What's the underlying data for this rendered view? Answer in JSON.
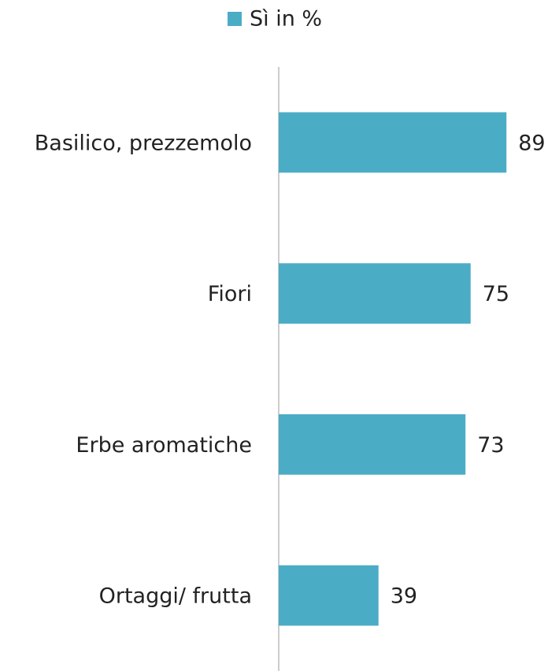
{
  "chart_data": {
    "type": "barh",
    "categories": [
      "Basilico, prezzemolo",
      "Fiori",
      "Erbe aromatiche",
      "Ortaggi/ frutta"
    ],
    "series": [
      {
        "name": "Sì in %",
        "color": "#4bacc6",
        "values": [
          89,
          75,
          73,
          39
        ]
      }
    ],
    "xlim": [
      0,
      100
    ],
    "legend": "top"
  }
}
